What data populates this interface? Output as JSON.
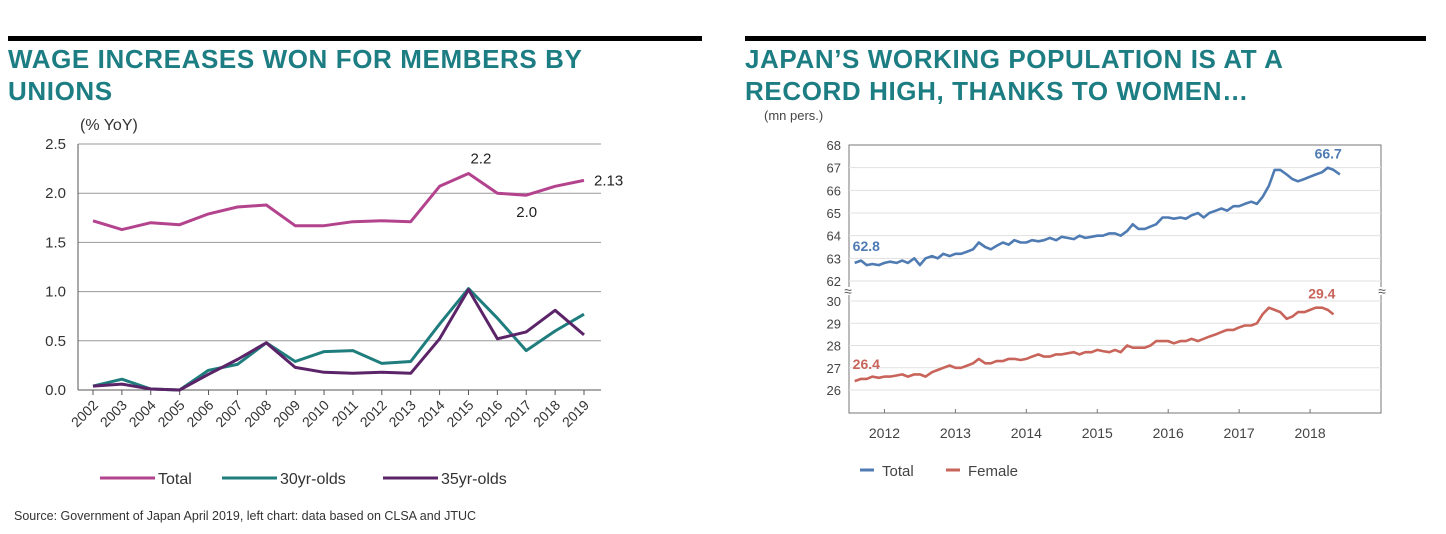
{
  "left": {
    "title_lines": [
      "WAGE INCREASES WON FOR MEMBERS BY",
      "UNIONS"
    ],
    "source": "Source: Government of Japan April 2019, left chart: data based on CLSA and JTUC"
  },
  "right": {
    "title_lines": [
      "JAPAN’S WORKING POPULATION IS AT A",
      "RECORD HIGH, THANKS TO WOMEN…"
    ]
  },
  "chart_data": [
    {
      "type": "line",
      "title": "WAGE INCREASES WON FOR MEMBERS BY UNIONS",
      "ylabel": "(% YoY)",
      "ylim": [
        0,
        2.5
      ],
      "yticks": [
        "0.0",
        "0.5",
        "1.0",
        "1.5",
        "2.0",
        "2.5"
      ],
      "ytick_values": [
        0,
        0.5,
        1.0,
        1.5,
        2.0,
        2.5
      ],
      "categories": [
        "2002",
        "2003",
        "2004",
        "2005",
        "2006",
        "2007",
        "2008",
        "2009",
        "2010",
        "2011",
        "2012",
        "2013",
        "2014",
        "2015",
        "2016",
        "2017",
        "2018",
        "2019"
      ],
      "series": [
        {
          "name": "Total",
          "color": "#b4438e",
          "values": [
            1.72,
            1.63,
            1.7,
            1.68,
            1.79,
            1.86,
            1.88,
            1.67,
            1.67,
            1.71,
            1.72,
            1.71,
            2.07,
            2.2,
            2.0,
            1.98,
            2.07,
            2.13
          ]
        },
        {
          "name": "30yr-olds",
          "color": "#1f7d7e",
          "values": [
            0.04,
            0.11,
            0.01,
            0.0,
            0.2,
            0.26,
            0.48,
            0.29,
            0.39,
            0.4,
            0.27,
            0.29,
            0.67,
            1.03,
            0.73,
            0.4,
            0.6,
            0.77
          ]
        },
        {
          "name": "35yr-olds",
          "color": "#5b2468",
          "values": [
            0.04,
            0.06,
            0.01,
            0.0,
            0.16,
            0.31,
            0.48,
            0.23,
            0.18,
            0.17,
            0.18,
            0.17,
            0.52,
            1.02,
            0.52,
            0.59,
            0.81,
            0.56
          ]
        }
      ],
      "annotations": [
        {
          "text": "2.2",
          "series": "Total",
          "category": "2015"
        },
        {
          "text": "2.0",
          "series": "Total",
          "category": "2017"
        },
        {
          "text": "2.13",
          "series": "Total",
          "category": "2019"
        }
      ],
      "legend": "bottom"
    },
    {
      "type": "line",
      "title": "JAPAN’S WORKING POPULATION IS AT A RECORD HIGH, THANKS TO WOMEN…",
      "ylabel": "(mn pers.)",
      "upper_axis": {
        "ylim": [
          62,
          68
        ],
        "ticks": [
          "62",
          "63",
          "64",
          "65",
          "66",
          "67",
          "68"
        ],
        "tick_values": [
          62,
          63,
          64,
          65,
          66,
          67,
          68
        ]
      },
      "lower_axis": {
        "ylim": [
          25,
          30
        ],
        "ticks": [
          "26",
          "27",
          "28",
          "29",
          "30"
        ],
        "tick_values": [
          26,
          27,
          28,
          29,
          30
        ]
      },
      "axis_break_symbol": "≈",
      "xlim": [
        2011.5,
        2019.0
      ],
      "xticks": [
        "2012",
        "2013",
        "2014",
        "2015",
        "2016",
        "2017",
        "2018"
      ],
      "xtick_values": [
        2012,
        2013,
        2014,
        2015,
        2016,
        2017,
        2018
      ],
      "series": [
        {
          "name": "Total",
          "color": "#4f7bb3",
          "axis": "upper",
          "points": [
            [
              2011.58,
              62.8
            ],
            [
              2011.67,
              62.9
            ],
            [
              2011.75,
              62.7
            ],
            [
              2011.83,
              62.75
            ],
            [
              2011.92,
              62.7
            ],
            [
              2012.0,
              62.8
            ],
            [
              2012.08,
              62.85
            ],
            [
              2012.17,
              62.8
            ],
            [
              2012.25,
              62.9
            ],
            [
              2012.33,
              62.8
            ],
            [
              2012.42,
              63.0
            ],
            [
              2012.5,
              62.7
            ],
            [
              2012.58,
              63.0
            ],
            [
              2012.67,
              63.1
            ],
            [
              2012.75,
              63.0
            ],
            [
              2012.83,
              63.2
            ],
            [
              2012.92,
              63.1
            ],
            [
              2013.0,
              63.2
            ],
            [
              2013.08,
              63.2
            ],
            [
              2013.17,
              63.3
            ],
            [
              2013.25,
              63.4
            ],
            [
              2013.33,
              63.7
            ],
            [
              2013.42,
              63.5
            ],
            [
              2013.5,
              63.4
            ],
            [
              2013.58,
              63.55
            ],
            [
              2013.67,
              63.7
            ],
            [
              2013.75,
              63.6
            ],
            [
              2013.83,
              63.8
            ],
            [
              2013.92,
              63.7
            ],
            [
              2014.0,
              63.7
            ],
            [
              2014.08,
              63.8
            ],
            [
              2014.17,
              63.75
            ],
            [
              2014.25,
              63.8
            ],
            [
              2014.33,
              63.9
            ],
            [
              2014.42,
              63.8
            ],
            [
              2014.5,
              63.95
            ],
            [
              2014.58,
              63.9
            ],
            [
              2014.67,
              63.85
            ],
            [
              2014.75,
              64.0
            ],
            [
              2014.83,
              63.9
            ],
            [
              2014.92,
              63.95
            ],
            [
              2015.0,
              64.0
            ],
            [
              2015.08,
              64.0
            ],
            [
              2015.17,
              64.1
            ],
            [
              2015.25,
              64.1
            ],
            [
              2015.33,
              64.0
            ],
            [
              2015.42,
              64.2
            ],
            [
              2015.5,
              64.5
            ],
            [
              2015.58,
              64.3
            ],
            [
              2015.67,
              64.3
            ],
            [
              2015.75,
              64.4
            ],
            [
              2015.83,
              64.5
            ],
            [
              2015.92,
              64.8
            ],
            [
              2016.0,
              64.8
            ],
            [
              2016.08,
              64.75
            ],
            [
              2016.17,
              64.8
            ],
            [
              2016.25,
              64.75
            ],
            [
              2016.33,
              64.9
            ],
            [
              2016.42,
              65.0
            ],
            [
              2016.5,
              64.8
            ],
            [
              2016.58,
              65.0
            ],
            [
              2016.67,
              65.1
            ],
            [
              2016.75,
              65.2
            ],
            [
              2016.83,
              65.1
            ],
            [
              2016.92,
              65.3
            ],
            [
              2017.0,
              65.3
            ],
            [
              2017.08,
              65.4
            ],
            [
              2017.17,
              65.5
            ],
            [
              2017.25,
              65.4
            ],
            [
              2017.33,
              65.7
            ],
            [
              2017.42,
              66.2
            ],
            [
              2017.5,
              66.9
            ],
            [
              2017.58,
              66.9
            ],
            [
              2017.67,
              66.7
            ],
            [
              2017.75,
              66.5
            ],
            [
              2017.83,
              66.4
            ],
            [
              2017.92,
              66.5
            ],
            [
              2018.0,
              66.6
            ],
            [
              2018.08,
              66.7
            ],
            [
              2018.17,
              66.8
            ],
            [
              2018.25,
              67.0
            ],
            [
              2018.33,
              66.9
            ],
            [
              2018.42,
              66.7
            ]
          ]
        },
        {
          "name": "Female",
          "color": "#c8645a",
          "axis": "lower",
          "points": [
            [
              2011.58,
              26.4
            ],
            [
              2011.67,
              26.5
            ],
            [
              2011.75,
              26.5
            ],
            [
              2011.83,
              26.6
            ],
            [
              2011.92,
              26.55
            ],
            [
              2012.0,
              26.6
            ],
            [
              2012.08,
              26.6
            ],
            [
              2012.17,
              26.65
            ],
            [
              2012.25,
              26.7
            ],
            [
              2012.33,
              26.6
            ],
            [
              2012.42,
              26.7
            ],
            [
              2012.5,
              26.7
            ],
            [
              2012.58,
              26.6
            ],
            [
              2012.67,
              26.8
            ],
            [
              2012.75,
              26.9
            ],
            [
              2012.83,
              27.0
            ],
            [
              2012.92,
              27.1
            ],
            [
              2013.0,
              27.0
            ],
            [
              2013.08,
              27.0
            ],
            [
              2013.17,
              27.1
            ],
            [
              2013.25,
              27.2
            ],
            [
              2013.33,
              27.4
            ],
            [
              2013.42,
              27.2
            ],
            [
              2013.5,
              27.2
            ],
            [
              2013.58,
              27.3
            ],
            [
              2013.67,
              27.3
            ],
            [
              2013.75,
              27.4
            ],
            [
              2013.83,
              27.4
            ],
            [
              2013.92,
              27.35
            ],
            [
              2014.0,
              27.4
            ],
            [
              2014.08,
              27.5
            ],
            [
              2014.17,
              27.6
            ],
            [
              2014.25,
              27.5
            ],
            [
              2014.33,
              27.5
            ],
            [
              2014.42,
              27.6
            ],
            [
              2014.5,
              27.6
            ],
            [
              2014.58,
              27.65
            ],
            [
              2014.67,
              27.7
            ],
            [
              2014.75,
              27.6
            ],
            [
              2014.83,
              27.7
            ],
            [
              2014.92,
              27.7
            ],
            [
              2015.0,
              27.8
            ],
            [
              2015.08,
              27.75
            ],
            [
              2015.17,
              27.7
            ],
            [
              2015.25,
              27.8
            ],
            [
              2015.33,
              27.7
            ],
            [
              2015.42,
              28.0
            ],
            [
              2015.5,
              27.9
            ],
            [
              2015.58,
              27.9
            ],
            [
              2015.67,
              27.9
            ],
            [
              2015.75,
              28.0
            ],
            [
              2015.83,
              28.2
            ],
            [
              2015.92,
              28.2
            ],
            [
              2016.0,
              28.2
            ],
            [
              2016.08,
              28.1
            ],
            [
              2016.17,
              28.2
            ],
            [
              2016.25,
              28.2
            ],
            [
              2016.33,
              28.3
            ],
            [
              2016.42,
              28.2
            ],
            [
              2016.5,
              28.3
            ],
            [
              2016.58,
              28.4
            ],
            [
              2016.67,
              28.5
            ],
            [
              2016.75,
              28.6
            ],
            [
              2016.83,
              28.7
            ],
            [
              2016.92,
              28.7
            ],
            [
              2016.99,
              28.8
            ],
            [
              2017.08,
              28.9
            ],
            [
              2017.17,
              28.9
            ],
            [
              2017.25,
              29.0
            ],
            [
              2017.33,
              29.4
            ],
            [
              2017.42,
              29.7
            ],
            [
              2017.5,
              29.6
            ],
            [
              2017.58,
              29.5
            ],
            [
              2017.67,
              29.2
            ],
            [
              2017.75,
              29.3
            ],
            [
              2017.83,
              29.5
            ],
            [
              2017.92,
              29.5
            ],
            [
              2018.0,
              29.6
            ],
            [
              2018.08,
              29.7
            ],
            [
              2018.17,
              29.7
            ],
            [
              2018.25,
              29.6
            ],
            [
              2018.33,
              29.4
            ]
          ]
        }
      ],
      "annotations": [
        {
          "text": "62.8",
          "series": "Total",
          "position": "start"
        },
        {
          "text": "66.7",
          "series": "Total",
          "position": "end"
        },
        {
          "text": "26.4",
          "series": "Female",
          "position": "start"
        },
        {
          "text": "29.4",
          "series": "Female",
          "position": "end"
        }
      ],
      "legend": "bottom-left"
    }
  ]
}
